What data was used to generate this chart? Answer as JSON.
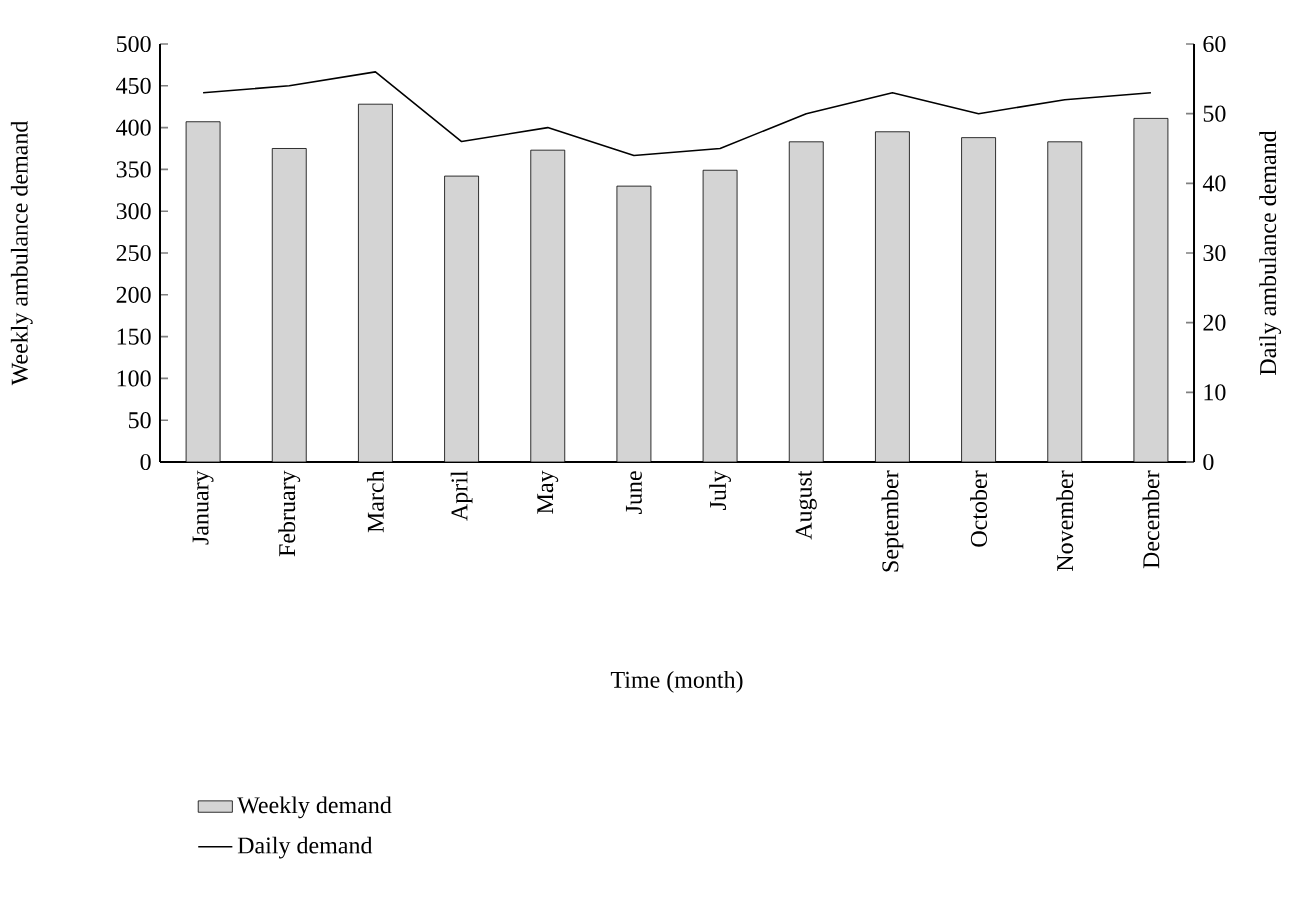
{
  "chart_data": {
    "type": "bar",
    "xlabel": "Time (month)",
    "ylabel": "Weekly ambulance demand",
    "y2label": "Daily ambulance demand",
    "categories": [
      "January",
      "February",
      "March",
      "April",
      "May",
      "June",
      "July",
      "August",
      "September",
      "October",
      "November",
      "December"
    ],
    "series": [
      {
        "name": "Weekly demand",
        "color": "#d4d4d4",
        "values": [
          407,
          375,
          428,
          342,
          373,
          330,
          349,
          383,
          395,
          388,
          383,
          411
        ]
      },
      {
        "name": "Daily demand",
        "type": "line",
        "axis": "y2",
        "color": "#000000",
        "values": [
          53,
          54,
          56,
          46,
          48,
          44,
          45,
          50,
          53,
          50,
          52,
          53
        ]
      }
    ],
    "ylim": [
      0,
      500
    ],
    "yticks": [
      0,
      50,
      100,
      150,
      200,
      250,
      300,
      350,
      400,
      450,
      500
    ],
    "y2lim": [
      0,
      60
    ],
    "y2ticks": [
      0,
      10,
      20,
      30,
      40,
      50,
      60
    ],
    "legend": "bottom",
    "grid": false,
    "marker": "none",
    "line_style": "solid"
  }
}
